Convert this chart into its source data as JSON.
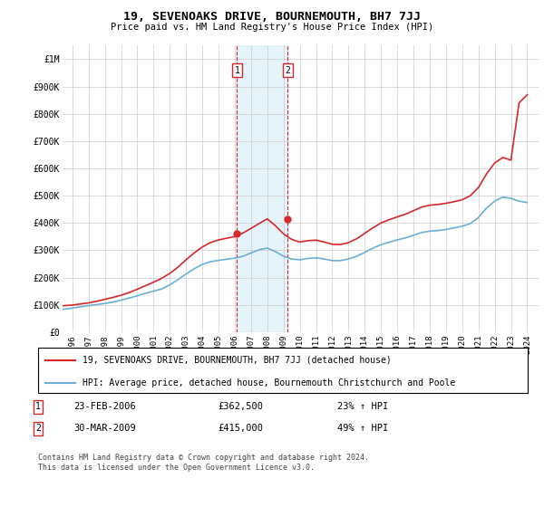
{
  "title": "19, SEVENOAKS DRIVE, BOURNEMOUTH, BH7 7JJ",
  "subtitle": "Price paid vs. HM Land Registry's House Price Index (HPI)",
  "legend_line1": "19, SEVENOAKS DRIVE, BOURNEMOUTH, BH7 7JJ (detached house)",
  "legend_line2": "HPI: Average price, detached house, Bournemouth Christchurch and Poole",
  "footer": "Contains HM Land Registry data © Crown copyright and database right 2024.\nThis data is licensed under the Open Government Licence v3.0.",
  "sale1_date": "23-FEB-2006",
  "sale1_price": "£362,500",
  "sale1_hpi": "23% ↑ HPI",
  "sale1_x": 2006.14,
  "sale1_y": 362500,
  "sale2_date": "30-MAR-2009",
  "sale2_price": "£415,000",
  "sale2_hpi": "49% ↑ HPI",
  "sale2_x": 2009.25,
  "sale2_y": 415000,
  "hpi_color": "#6baed6",
  "price_color": "#d62728",
  "background_color": "#ffffff",
  "grid_color": "#cccccc",
  "shade_color": "#daeef8",
  "ylim": [
    0,
    1050000
  ],
  "yticks": [
    0,
    100000,
    200000,
    300000,
    400000,
    500000,
    600000,
    700000,
    800000,
    900000,
    1000000
  ],
  "ytick_labels": [
    "£0",
    "£100K",
    "£200K",
    "£300K",
    "£400K",
    "£500K",
    "£600K",
    "£700K",
    "£800K",
    "£900K",
    "£1M"
  ],
  "xlim_start": 1995.4,
  "xlim_end": 2024.7,
  "xtick_start": 1996,
  "xtick_end": 2024,
  "hpi_years": [
    1995,
    1995.5,
    1996,
    1996.5,
    1997,
    1997.5,
    1998,
    1998.5,
    1999,
    1999.5,
    2000,
    2000.5,
    2001,
    2001.5,
    2002,
    2002.5,
    2003,
    2003.5,
    2004,
    2004.5,
    2005,
    2005.5,
    2006,
    2006.5,
    2007,
    2007.5,
    2008,
    2008.5,
    2009,
    2009.5,
    2010,
    2010.5,
    2011,
    2011.5,
    2012,
    2012.5,
    2013,
    2013.5,
    2014,
    2014.5,
    2015,
    2015.5,
    2016,
    2016.5,
    2017,
    2017.5,
    2018,
    2018.5,
    2019,
    2019.5,
    2020,
    2020.5,
    2021,
    2021.5,
    2022,
    2022.5,
    2023,
    2023.5,
    2024
  ],
  "hpi_values": [
    82000,
    84000,
    88000,
    93000,
    97000,
    101000,
    105000,
    110000,
    117000,
    125000,
    133000,
    142000,
    150000,
    158000,
    173000,
    192000,
    213000,
    232000,
    248000,
    258000,
    263000,
    267000,
    271000,
    278000,
    290000,
    302000,
    308000,
    295000,
    278000,
    268000,
    265000,
    270000,
    272000,
    268000,
    262000,
    262000,
    268000,
    278000,
    292000,
    308000,
    320000,
    330000,
    338000,
    345000,
    355000,
    365000,
    370000,
    372000,
    376000,
    382000,
    388000,
    398000,
    420000,
    455000,
    480000,
    495000,
    490000,
    480000,
    475000
  ],
  "price_years": [
    1995,
    1995.5,
    1996,
    1996.5,
    1997,
    1997.5,
    1998,
    1998.5,
    1999,
    1999.5,
    2000,
    2000.5,
    2001,
    2001.5,
    2002,
    2002.5,
    2003,
    2003.5,
    2004,
    2004.5,
    2005,
    2005.5,
    2006,
    2006.5,
    2007,
    2007.5,
    2008,
    2008.5,
    2009,
    2009.5,
    2010,
    2010.5,
    2011,
    2011.5,
    2012,
    2012.5,
    2013,
    2013.5,
    2014,
    2014.5,
    2015,
    2015.5,
    2016,
    2016.5,
    2017,
    2017.5,
    2018,
    2018.5,
    2019,
    2019.5,
    2020,
    2020.5,
    2021,
    2021.5,
    2022,
    2022.5,
    2023,
    2023.5,
    2024
  ],
  "price_values": [
    95000,
    97000,
    99000,
    103000,
    107000,
    113000,
    120000,
    127000,
    135000,
    145000,
    157000,
    170000,
    183000,
    197000,
    215000,
    238000,
    265000,
    290000,
    312000,
    328000,
    338000,
    344000,
    350000,
    363000,
    380000,
    398000,
    415000,
    390000,
    360000,
    340000,
    330000,
    335000,
    337000,
    330000,
    322000,
    321000,
    328000,
    342000,
    362000,
    382000,
    400000,
    412000,
    422000,
    432000,
    445000,
    458000,
    465000,
    468000,
    472000,
    478000,
    485000,
    500000,
    530000,
    580000,
    620000,
    640000,
    630000,
    840000,
    870000
  ]
}
